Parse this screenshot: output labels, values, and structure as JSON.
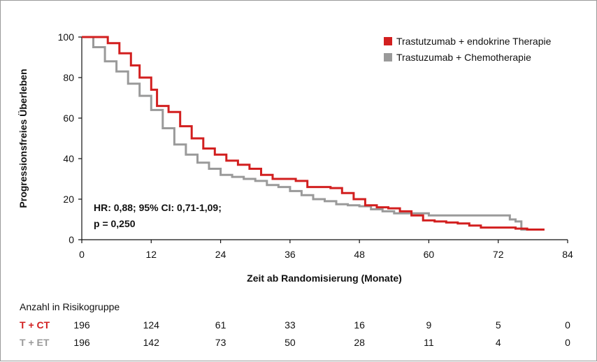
{
  "chart_data": {
    "type": "line",
    "title": "",
    "xlabel": "Zeit ab Randomisierung (Monate)",
    "ylabel": "Progressionsfreies Überleben",
    "xlim": [
      0,
      84
    ],
    "ylim": [
      0,
      100
    ],
    "xticks": [
      "0",
      "12",
      "24",
      "36",
      "48",
      "60",
      "72",
      "84"
    ],
    "yticks": [
      "0",
      "20",
      "40",
      "60",
      "80",
      "100"
    ],
    "grid": false,
    "legend_position": "top-right",
    "annotation": [
      "HR: 0,88; 95% CI: 0,71-1,09;",
      "p = 0,250"
    ],
    "series": [
      {
        "name": "Trastutzumab + endokrine Therapie",
        "color": "#d21f1f",
        "x": [
          0,
          4.5,
          6.5,
          8.5,
          10,
          12,
          13,
          15,
          17,
          19,
          21,
          23,
          25,
          27,
          29,
          31,
          33,
          35,
          37,
          39,
          41,
          43,
          45,
          47,
          49,
          51,
          53,
          55,
          57,
          59,
          61,
          63,
          65,
          67,
          69,
          71,
          73,
          75,
          77,
          79,
          80
        ],
        "y": [
          100,
          97,
          92,
          86,
          80,
          74,
          66,
          63,
          56,
          50,
          45,
          42,
          39,
          37,
          35,
          32,
          30,
          30,
          29,
          26,
          26,
          25.5,
          23,
          20,
          17,
          16,
          15.5,
          14,
          12,
          9.5,
          9,
          8.5,
          8,
          7,
          6,
          6,
          6,
          5.5,
          5,
          5,
          5
        ]
      },
      {
        "name": "Trastuzumab + Chemotherapie",
        "color": "#9a9a9a",
        "x": [
          0,
          2,
          4,
          6,
          8,
          10,
          12,
          14,
          16,
          18,
          20,
          22,
          24,
          26,
          28,
          30,
          32,
          34,
          36,
          38,
          40,
          42,
          44,
          46,
          48,
          50,
          52,
          54,
          56,
          58,
          60,
          62,
          64,
          66,
          68,
          70,
          72,
          74,
          75,
          76,
          78
        ],
        "y": [
          100,
          95,
          88,
          83,
          77,
          71,
          64,
          55,
          47,
          42,
          38,
          35,
          32,
          31,
          30,
          29,
          27,
          26,
          24,
          22,
          20,
          19,
          17.5,
          17,
          16.5,
          15,
          14,
          13,
          13,
          13,
          12,
          12,
          12,
          12,
          12,
          12,
          12,
          10,
          9,
          5,
          5
        ]
      }
    ]
  },
  "risk_table": {
    "title": "Anzahl in Risikogruppe",
    "rows": [
      {
        "label": "T + CT",
        "color": "#d21f1f",
        "values": [
          "196",
          "124",
          "61",
          "33",
          "16",
          "9",
          "5",
          "0"
        ]
      },
      {
        "label": "T + ET",
        "color": "#9a9a9a",
        "values": [
          "196",
          "142",
          "73",
          "50",
          "28",
          "11",
          "4",
          "0"
        ]
      }
    ]
  }
}
